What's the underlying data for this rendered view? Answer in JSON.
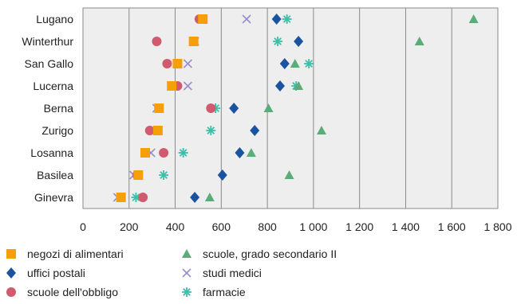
{
  "chart_data": {
    "type": "scatter",
    "title": "",
    "xlabel": "",
    "ylabel": "",
    "xlim": [
      0,
      1800
    ],
    "xticks": [
      0,
      200,
      400,
      600,
      800,
      1000,
      1200,
      1400,
      1600,
      1800
    ],
    "xtick_labels": [
      "0",
      "200",
      "400",
      "600",
      "800",
      "1 000",
      "1 200",
      "1 400",
      "1 600",
      "1 800"
    ],
    "categories": [
      "Lugano",
      "Winterthur",
      "San Gallo",
      "Lucerna",
      "Berna",
      "Zurigo",
      "Losanna",
      "Basilea",
      "Ginevra"
    ],
    "grid": true,
    "legend_position": "bottom",
    "series": [
      {
        "name": "negozi di alimentari",
        "marker": "square",
        "color": "#f5a00a",
        "values": [
          520,
          480,
          410,
          385,
          330,
          325,
          270,
          240,
          165
        ]
      },
      {
        "name": "uffici postali",
        "marker": "diamond",
        "color": "#1a54a0",
        "values": [
          840,
          935,
          875,
          855,
          655,
          745,
          680,
          605,
          485
        ]
      },
      {
        "name": "scuole dell'obbligo",
        "marker": "circle",
        "color": "#d05a6e",
        "values": [
          505,
          320,
          365,
          410,
          555,
          290,
          350,
          235,
          260
        ]
      },
      {
        "name": "scuole, grado secondario II",
        "marker": "triangle",
        "color": "#5dab78",
        "values": [
          1695,
          1460,
          920,
          935,
          805,
          1035,
          730,
          895,
          550
        ]
      },
      {
        "name": "studi medici",
        "marker": "x",
        "color": "#9a8dce",
        "values": [
          710,
          485,
          455,
          455,
          320,
          325,
          295,
          220,
          150
        ]
      },
      {
        "name": "farmacie",
        "marker": "asterisk",
        "color": "#3cbfa9",
        "values": [
          885,
          845,
          980,
          925,
          575,
          555,
          435,
          350,
          230
        ]
      }
    ]
  },
  "legend_layout_order": [
    "negozi di alimentari",
    "scuole, grado secondario II",
    "uffici postali",
    "studi medici",
    "scuole dell'obbligo",
    "farmacie"
  ]
}
